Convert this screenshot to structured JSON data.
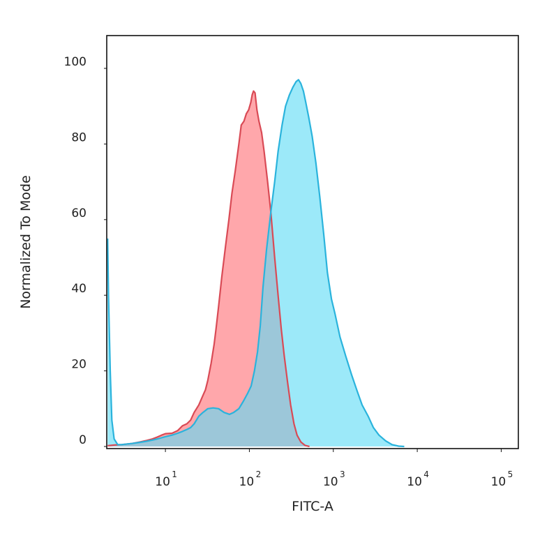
{
  "chart_data": {
    "type": "area",
    "xlabel": "FITC-A",
    "ylabel": "Normalized To Mode",
    "x_scale": "log",
    "xlim": [
      2,
      160000
    ],
    "ylim": [
      0,
      100
    ],
    "x_ticks": [
      {
        "base": "10",
        "exp": "1",
        "value": 10
      },
      {
        "base": "10",
        "exp": "2",
        "value": 100
      },
      {
        "base": "10",
        "exp": "3",
        "value": 1000
      },
      {
        "base": "10",
        "exp": "4",
        "value": 10000
      },
      {
        "base": "10",
        "exp": "5",
        "value": 100000
      }
    ],
    "y_ticks": [
      "0",
      "20",
      "40",
      "60",
      "80",
      "100"
    ],
    "grid": false,
    "series": [
      {
        "color": "#ff8a8f",
        "line_color": "#d94a55",
        "points": [
          [
            2.05,
            0.2
          ],
          [
            2.5,
            0.4
          ],
          [
            3,
            0.5
          ],
          [
            4,
            0.8
          ],
          [
            5,
            1.2
          ],
          [
            6,
            1.6
          ],
          [
            7,
            2.0
          ],
          [
            8,
            2.5
          ],
          [
            9,
            3.0
          ],
          [
            10,
            3.4
          ],
          [
            12,
            3.5
          ],
          [
            14,
            4.2
          ],
          [
            16,
            5.5
          ],
          [
            18,
            6.0
          ],
          [
            20,
            7.0
          ],
          [
            22,
            9.0
          ],
          [
            25,
            11.0
          ],
          [
            28,
            13.5
          ],
          [
            30,
            15.0
          ],
          [
            32,
            17.5
          ],
          [
            35,
            22.0
          ],
          [
            38,
            27.0
          ],
          [
            40,
            31.0
          ],
          [
            43,
            37.0
          ],
          [
            47,
            45.0
          ],
          [
            52,
            53.0
          ],
          [
            57,
            60.0
          ],
          [
            62,
            67.0
          ],
          [
            68,
            73.0
          ],
          [
            75,
            80.0
          ],
          [
            80,
            85.0
          ],
          [
            86,
            86.0
          ],
          [
            92,
            88.0
          ],
          [
            98,
            89.0
          ],
          [
            104,
            91.0
          ],
          [
            108,
            93.0
          ],
          [
            112,
            94.0
          ],
          [
            117,
            93.5
          ],
          [
            123,
            89.0
          ],
          [
            130,
            86.0
          ],
          [
            140,
            83.0
          ],
          [
            150,
            78.0
          ],
          [
            165,
            70.0
          ],
          [
            180,
            62.0
          ],
          [
            200,
            50.0
          ],
          [
            220,
            40.0
          ],
          [
            240,
            31.0
          ],
          [
            260,
            24.0
          ],
          [
            285,
            17.0
          ],
          [
            310,
            11.0
          ],
          [
            340,
            6.0
          ],
          [
            370,
            3.0
          ],
          [
            410,
            1.2
          ],
          [
            460,
            0.3
          ],
          [
            520,
            0
          ]
        ]
      },
      {
        "color": "#5fdcf6",
        "line_color": "#2ab3dc",
        "points": [
          [
            2.05,
            55.0
          ],
          [
            2.1,
            40.0
          ],
          [
            2.2,
            20.0
          ],
          [
            2.3,
            7.0
          ],
          [
            2.45,
            2.0
          ],
          [
            2.7,
            0.5
          ],
          [
            3,
            0.5
          ],
          [
            4,
            0.8
          ],
          [
            5,
            1.1
          ],
          [
            6,
            1.4
          ],
          [
            7,
            1.7
          ],
          [
            8,
            2.0
          ],
          [
            9,
            2.3
          ],
          [
            10,
            2.6
          ],
          [
            12,
            3.0
          ],
          [
            14,
            3.5
          ],
          [
            16,
            4.0
          ],
          [
            18,
            4.5
          ],
          [
            20,
            5.0
          ],
          [
            22,
            6.0
          ],
          [
            25,
            8.0
          ],
          [
            28,
            9.0
          ],
          [
            32,
            10.0
          ],
          [
            37,
            10.2
          ],
          [
            43,
            10.0
          ],
          [
            50,
            9.0
          ],
          [
            58,
            8.5
          ],
          [
            65,
            9.0
          ],
          [
            75,
            10.0
          ],
          [
            85,
            12.0
          ],
          [
            95,
            14.0
          ],
          [
            105,
            16.0
          ],
          [
            115,
            20.0
          ],
          [
            125,
            25.0
          ],
          [
            135,
            32.0
          ],
          [
            145,
            42.0
          ],
          [
            160,
            52.0
          ],
          [
            180,
            62.0
          ],
          [
            200,
            70.0
          ],
          [
            220,
            78.0
          ],
          [
            245,
            85.0
          ],
          [
            270,
            90.0
          ],
          [
            300,
            93.0
          ],
          [
            330,
            95.0
          ],
          [
            360,
            96.5
          ],
          [
            385,
            97.0
          ],
          [
            410,
            96.0
          ],
          [
            440,
            94.0
          ],
          [
            470,
            91.0
          ],
          [
            510,
            87.0
          ],
          [
            560,
            82.0
          ],
          [
            620,
            75.0
          ],
          [
            690,
            66.0
          ],
          [
            770,
            56.0
          ],
          [
            850,
            46.0
          ],
          [
            950,
            39.0
          ],
          [
            1050,
            35.0
          ],
          [
            1200,
            29.0
          ],
          [
            1400,
            24.0
          ],
          [
            1650,
            19.0
          ],
          [
            1900,
            15.0
          ],
          [
            2200,
            11.0
          ],
          [
            2600,
            8.0
          ],
          [
            3000,
            5.0
          ],
          [
            3500,
            3.0
          ],
          [
            4200,
            1.5
          ],
          [
            5000,
            0.5
          ],
          [
            6000,
            0.1
          ],
          [
            7000,
            0
          ]
        ]
      }
    ]
  }
}
